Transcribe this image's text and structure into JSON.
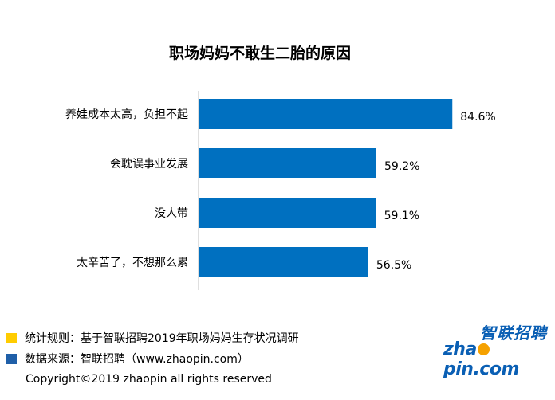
{
  "chart_data": {
    "type": "bar",
    "orientation": "horizontal",
    "title": "职场妈妈不敢生二胎的原因",
    "categories": [
      "养娃成本太高，负担不起",
      "会耽误事业发展",
      "没人带",
      "太辛苦了，不想那么累"
    ],
    "values": [
      84.6,
      59.2,
      59.1,
      56.5
    ],
    "value_labels": [
      "84.6%",
      "59.2%",
      "59.1%",
      "56.5%"
    ],
    "xlim": [
      0,
      100
    ],
    "grid": false,
    "legend": "none",
    "bar_color": "#0070C0"
  },
  "notes": [
    {
      "marker_color": "#FFCC00",
      "text": "统计规则：基于智联招聘2019年职场妈妈生存状况调研"
    },
    {
      "marker_color": "#1F5FA8",
      "text": "数据来源：智联招聘（www.zhaopin.com）"
    }
  ],
  "copyright": "Copyright©2019 zhaopin all rights reserved",
  "logo": {
    "cn": "智联招聘",
    "en_pre": "zha",
    "en_o": "o",
    "en_post": "pin.com",
    "icon": "zhaopin-logo"
  }
}
